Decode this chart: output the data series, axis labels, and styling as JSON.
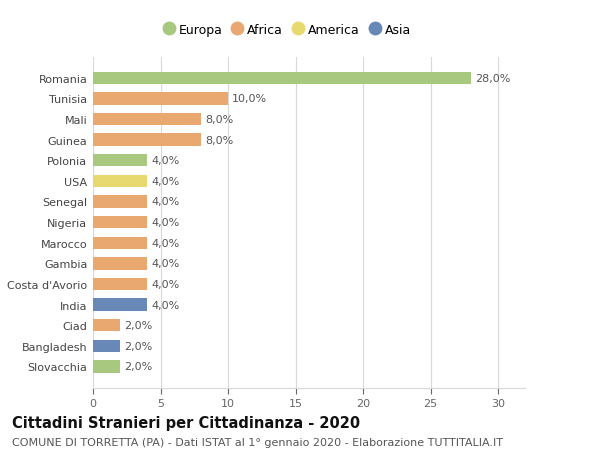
{
  "countries": [
    "Romania",
    "Tunisia",
    "Mali",
    "Guinea",
    "Polonia",
    "USA",
    "Senegal",
    "Nigeria",
    "Marocco",
    "Gambia",
    "Costa d'Avorio",
    "India",
    "Ciad",
    "Bangladesh",
    "Slovacchia"
  ],
  "values": [
    28.0,
    10.0,
    8.0,
    8.0,
    4.0,
    4.0,
    4.0,
    4.0,
    4.0,
    4.0,
    4.0,
    4.0,
    2.0,
    2.0,
    2.0
  ],
  "colors": [
    "#a8c880",
    "#e8a870",
    "#e8a870",
    "#e8a870",
    "#a8c880",
    "#e8d870",
    "#e8a870",
    "#e8a870",
    "#e8a870",
    "#e8a870",
    "#e8a870",
    "#6888b8",
    "#e8a870",
    "#6888b8",
    "#a8c880"
  ],
  "labels": [
    "28,0%",
    "10,0%",
    "8,0%",
    "8,0%",
    "4,0%",
    "4,0%",
    "4,0%",
    "4,0%",
    "4,0%",
    "4,0%",
    "4,0%",
    "4,0%",
    "2,0%",
    "2,0%",
    "2,0%"
  ],
  "legend_labels": [
    "Europa",
    "Africa",
    "America",
    "Asia"
  ],
  "legend_colors": [
    "#a8c880",
    "#e8a870",
    "#e8d870",
    "#6888b8"
  ],
  "title": "Cittadini Stranieri per Cittadinanza - 2020",
  "subtitle": "COMUNE DI TORRETTA (PA) - Dati ISTAT al 1° gennaio 2020 - Elaborazione TUTTITALIA.IT",
  "xlim": [
    0,
    32
  ],
  "xticks": [
    0,
    5,
    10,
    15,
    20,
    25,
    30
  ],
  "background_color": "#ffffff",
  "grid_color": "#d8d8d8",
  "bar_height": 0.6,
  "title_fontsize": 10.5,
  "subtitle_fontsize": 8,
  "label_fontsize": 8,
  "tick_fontsize": 8,
  "legend_fontsize": 9
}
